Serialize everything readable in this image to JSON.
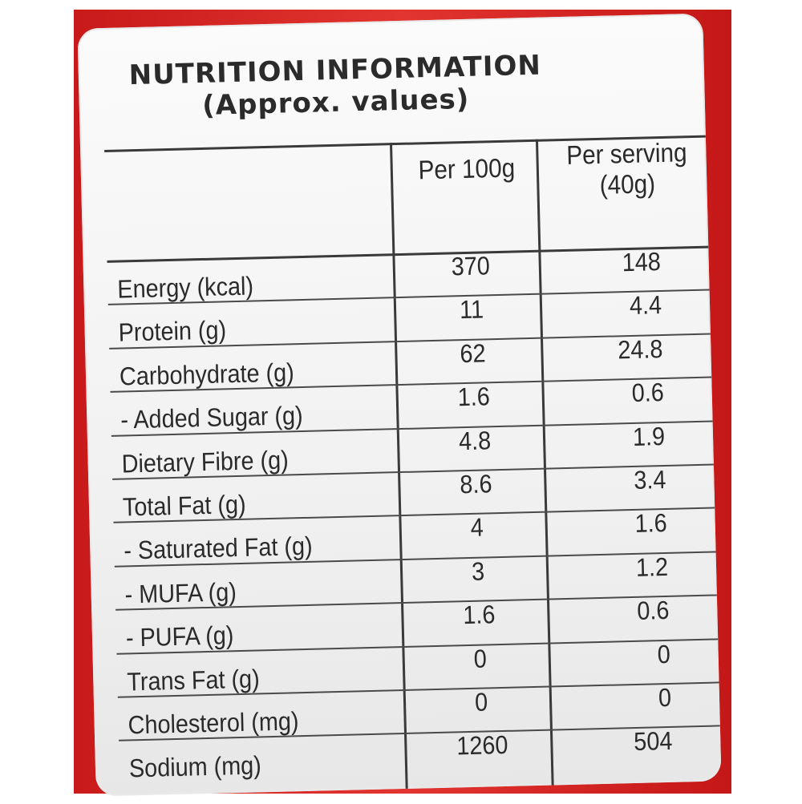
{
  "title_line1": "NUTRITION INFORMATION",
  "title_line2": "(Approx. values)",
  "header": {
    "per100": "Per 100g",
    "serving_line1": "Per serving",
    "serving_line2": "(40g)"
  },
  "rows": [
    {
      "label": "Energy (kcal)",
      "per100": "370",
      "serving": "148"
    },
    {
      "label": "Protein (g)",
      "per100": "11",
      "serving": "4.4"
    },
    {
      "label": "Carbohydrate (g)",
      "per100": "62",
      "serving": "24.8"
    },
    {
      "label": "- Added Sugar (g)",
      "per100": "1.6",
      "serving": "0.6"
    },
    {
      "label": "Dietary Fibre (g)",
      "per100": "4.8",
      "serving": "1.9"
    },
    {
      "label": "Total Fat (g)",
      "per100": "8.6",
      "serving": "3.4"
    },
    {
      "label": "- Saturated Fat (g)",
      "per100": "4",
      "serving": "1.6"
    },
    {
      "label": "- MUFA (g)",
      "per100": "3",
      "serving": "1.2"
    },
    {
      "label": "- PUFA (g)",
      "per100": "1.6",
      "serving": "0.6"
    },
    {
      "label": "Trans Fat (g)",
      "per100": "0",
      "serving": "0"
    },
    {
      "label": "Cholesterol (mg)",
      "per100": "0",
      "serving": "0"
    },
    {
      "label": "Sodium (mg)",
      "per100": "1260",
      "serving": "504"
    }
  ],
  "colors": {
    "package_red": "#d82a27",
    "label_bg": "#f4f4f4",
    "text": "#2a2a2a"
  }
}
